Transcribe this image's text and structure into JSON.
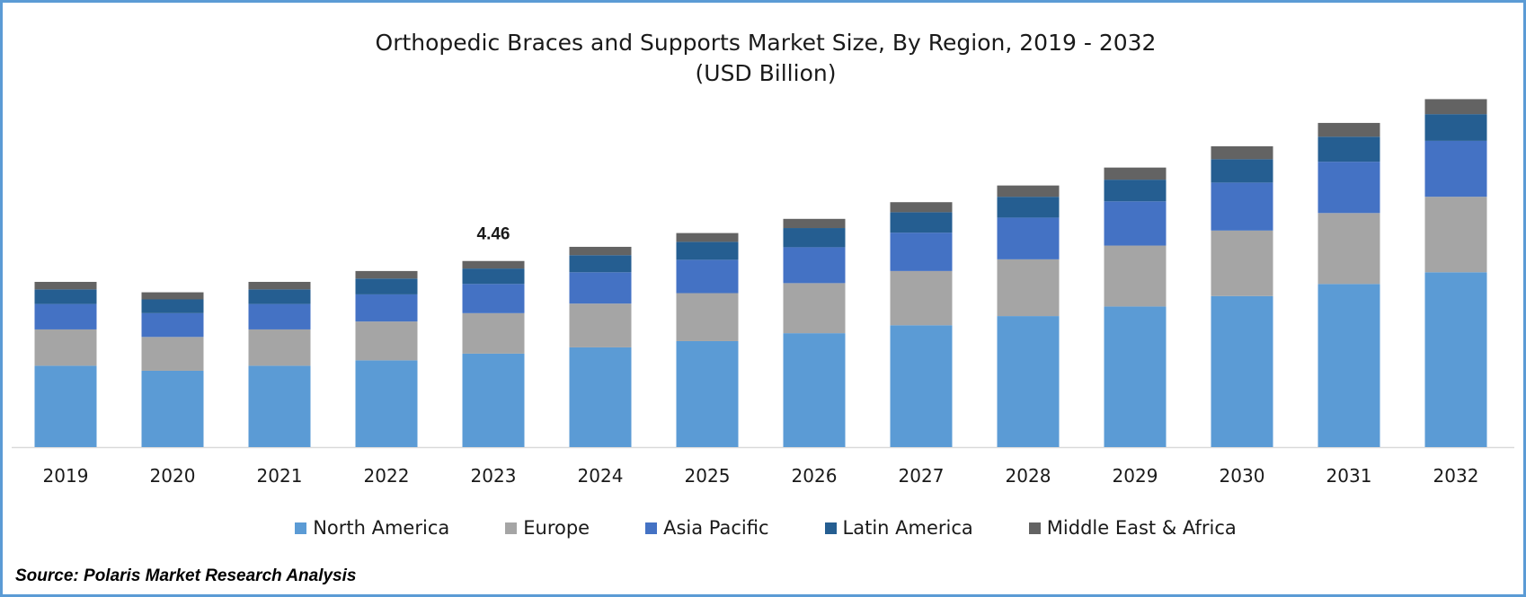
{
  "chart_data": {
    "type": "bar",
    "stacked": true,
    "title": "Orthopedic Braces and Supports Market Size, By Region, 2019 - 2032",
    "subtitle": "(USD Billion)",
    "categories": [
      "2019",
      "2020",
      "2021",
      "2022",
      "2023",
      "2024",
      "2025",
      "2026",
      "2027",
      "2028",
      "2029",
      "2030",
      "2031",
      "2032"
    ],
    "series": [
      {
        "name": "North America",
        "color": "#5b9bd5",
        "values": [
          1.95,
          1.83,
          1.95,
          2.08,
          2.24,
          2.39,
          2.54,
          2.73,
          2.92,
          3.14,
          3.37,
          3.62,
          3.91,
          4.19
        ]
      },
      {
        "name": "Europe",
        "color": "#a5a5a5",
        "values": [
          0.87,
          0.81,
          0.87,
          0.93,
          0.97,
          1.05,
          1.15,
          1.2,
          1.3,
          1.36,
          1.46,
          1.57,
          1.7,
          1.81
        ]
      },
      {
        "name": "Asia Pacific",
        "color": "#4472c4",
        "values": [
          0.61,
          0.57,
          0.61,
          0.65,
          0.7,
          0.75,
          0.8,
          0.86,
          0.92,
          1.0,
          1.06,
          1.15,
          1.23,
          1.34
        ]
      },
      {
        "name": "Latin America",
        "color": "#255e91",
        "values": [
          0.35,
          0.33,
          0.35,
          0.38,
          0.37,
          0.41,
          0.43,
          0.46,
          0.49,
          0.5,
          0.52,
          0.56,
          0.6,
          0.64
        ]
      },
      {
        "name": "Middle East & Africa",
        "color": "#636363",
        "values": [
          0.18,
          0.17,
          0.18,
          0.18,
          0.18,
          0.2,
          0.21,
          0.22,
          0.24,
          0.27,
          0.29,
          0.31,
          0.33,
          0.36
        ]
      }
    ],
    "annotations": [
      {
        "category": "2023",
        "text": "4.46"
      }
    ],
    "ylim": [
      0,
      8.5
    ],
    "grid": false,
    "legend_position": "bottom"
  },
  "source": "Source: Polaris Market Research Analysis"
}
